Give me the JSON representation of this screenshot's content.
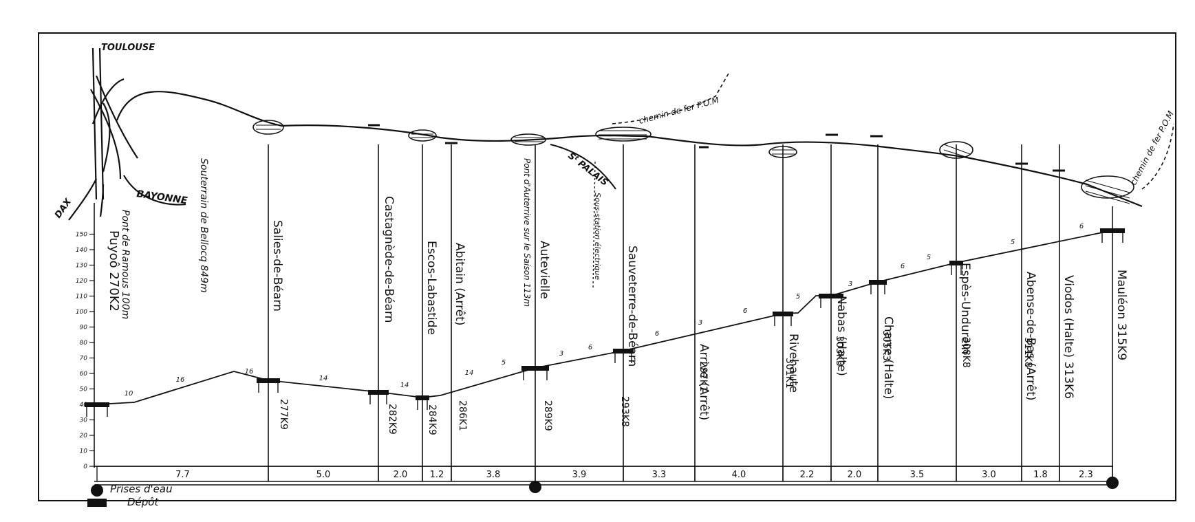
{
  "ends": {
    "toulouse": "TOULOUSE",
    "bayonne": "BAYONNE",
    "dax": "DAX"
  },
  "rail_labels": {
    "pom_1": "chemin de fer P.O.M",
    "pom_2": "chemin de fer P.O.M",
    "st_palais": "S<sup>t</sup> PALAIS"
  },
  "notes": {
    "bellocq": "Souterrain de Bellocq 849m",
    "ramous": "Pont de Ramous 100m",
    "auterrive": "Pont d'Auterrive sur le Saison 113m",
    "sub": "Sous-station électrique"
  },
  "stations": [
    {
      "name": "Puyoô 270K2",
      "km": "",
      "kind": "terminus"
    },
    {
      "name": "Salies-de-Béarn",
      "km": "277K9",
      "kind": "station"
    },
    {
      "name": "Castagnède-de-Béarn",
      "km": "282K9",
      "kind": "station"
    },
    {
      "name": "Escos-Labastide",
      "km": "284K9",
      "kind": "station"
    },
    {
      "name": "Abitain (Arrêt)",
      "km": "286K1",
      "kind": "halt"
    },
    {
      "name": "Autevielle",
      "km": "289K9",
      "kind": "station"
    },
    {
      "name": "Sauveterre-de-Béarn",
      "km": "293K8",
      "kind": "station"
    },
    {
      "name": "Arrive (Arrêt)",
      "km": "297K1",
      "kind": "halt"
    },
    {
      "name": "Rivehaute",
      "km": "301K1",
      "kind": "station"
    },
    {
      "name": "Nabas (Halte)",
      "km": "303K3",
      "kind": "halt"
    },
    {
      "name": "Charre (Halte)",
      "km": "305K3",
      "kind": "halt"
    },
    {
      "name": "Espès-Undurein",
      "km": "308K8",
      "kind": "station"
    },
    {
      "name": "Abense-de-Bas (Arrêt)",
      "km": "311K8",
      "kind": "halt"
    },
    {
      "name": "Viodos (Halte) 313K6",
      "km": "",
      "kind": "halt"
    },
    {
      "name": "Mauléon 315K9",
      "km": "",
      "kind": "terminus"
    }
  ],
  "altitude_axis": [
    "0",
    "10",
    "20",
    "30",
    "40",
    "50",
    "60",
    "70",
    "80",
    "90",
    "100",
    "110",
    "120",
    "130",
    "140",
    "150"
  ],
  "distances": [
    "7.7",
    "5.0",
    "2.0",
    "1.2",
    "3.8",
    "3.9",
    "3.3",
    "4.0",
    "2.2",
    "2.0",
    "3.5",
    "3.0",
    "1.8",
    "2.3"
  ],
  "gradients": [
    "10",
    "16",
    "16",
    "14",
    "14",
    "14",
    "5",
    "3",
    "6",
    "6",
    "3",
    "6",
    "5",
    "3",
    "6",
    "5",
    "5",
    "6"
  ],
  "bottom": {
    "water": "Prises d'eau",
    "depot": "Dépôt"
  },
  "colors": {
    "ink": "#111111",
    "paper": "#ffffff"
  }
}
